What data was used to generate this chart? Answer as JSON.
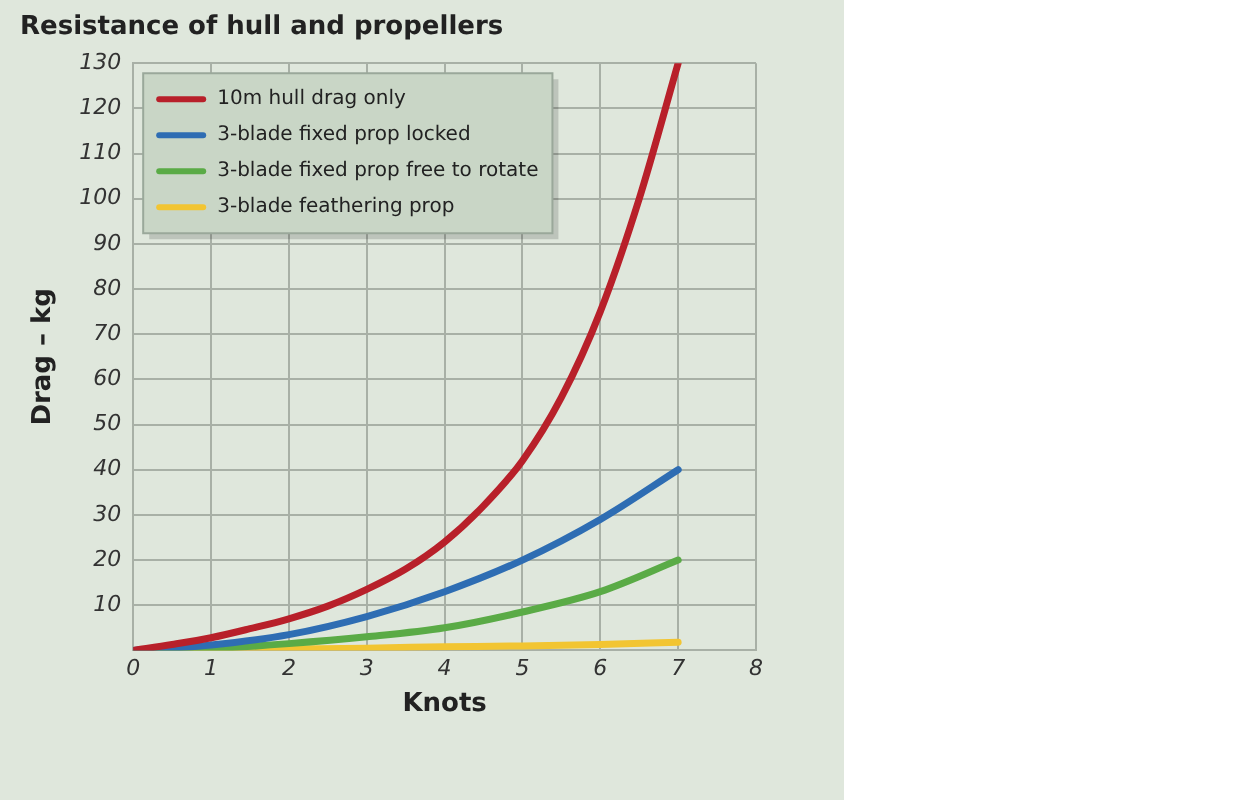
{
  "chart_data": {
    "type": "line",
    "title": "Resistance of hull and propellers",
    "xlabel": "Knots",
    "ylabel": "Drag – kg",
    "xlim": [
      0,
      8
    ],
    "xticks": [
      0,
      1,
      2,
      3,
      4,
      5,
      6,
      7,
      8
    ],
    "ylim": [
      0,
      130
    ],
    "yticks": [
      {
        "value": 0,
        "label": null
      },
      10,
      20,
      30,
      40,
      50,
      60,
      70,
      80,
      90,
      100,
      110,
      120,
      130
    ],
    "grid": true,
    "legend": "top left",
    "marker": "none",
    "line_style": "solid",
    "series": [
      {
        "name": "10m hull drag only",
        "color": "#b8202a",
        "x": [
          0,
          0.5,
          1,
          1.5,
          2,
          2.5,
          3,
          3.5,
          4,
          4.5,
          5,
          5.5,
          6,
          6.5,
          7
        ],
        "values": [
          0,
          1.3,
          2.8,
          4.8,
          7,
          9.8,
          13.5,
          18,
          24,
          32,
          42,
          56,
          75,
          100,
          130
        ]
      },
      {
        "name": "3-blade fixed prop locked",
        "color": "#2e6db3",
        "x": [
          0,
          1,
          2,
          3,
          4,
          5,
          6,
          7
        ],
        "values": [
          0,
          1.2,
          3.5,
          7.5,
          13,
          20,
          29,
          40
        ]
      },
      {
        "name": "3-blade fixed prop free to rotate",
        "color": "#5aab46",
        "x": [
          0,
          1,
          2,
          3,
          4,
          5,
          6,
          7
        ],
        "values": [
          0,
          0.4,
          1.5,
          3,
          5,
          8.5,
          13,
          20
        ]
      },
      {
        "name": "3-blade feathering prop",
        "color": "#f2c532",
        "x": [
          0,
          1,
          2,
          3,
          4,
          5,
          6,
          7
        ],
        "values": [
          0,
          0.1,
          0.3,
          0.5,
          0.8,
          1,
          1.3,
          1.8
        ]
      }
    ]
  }
}
